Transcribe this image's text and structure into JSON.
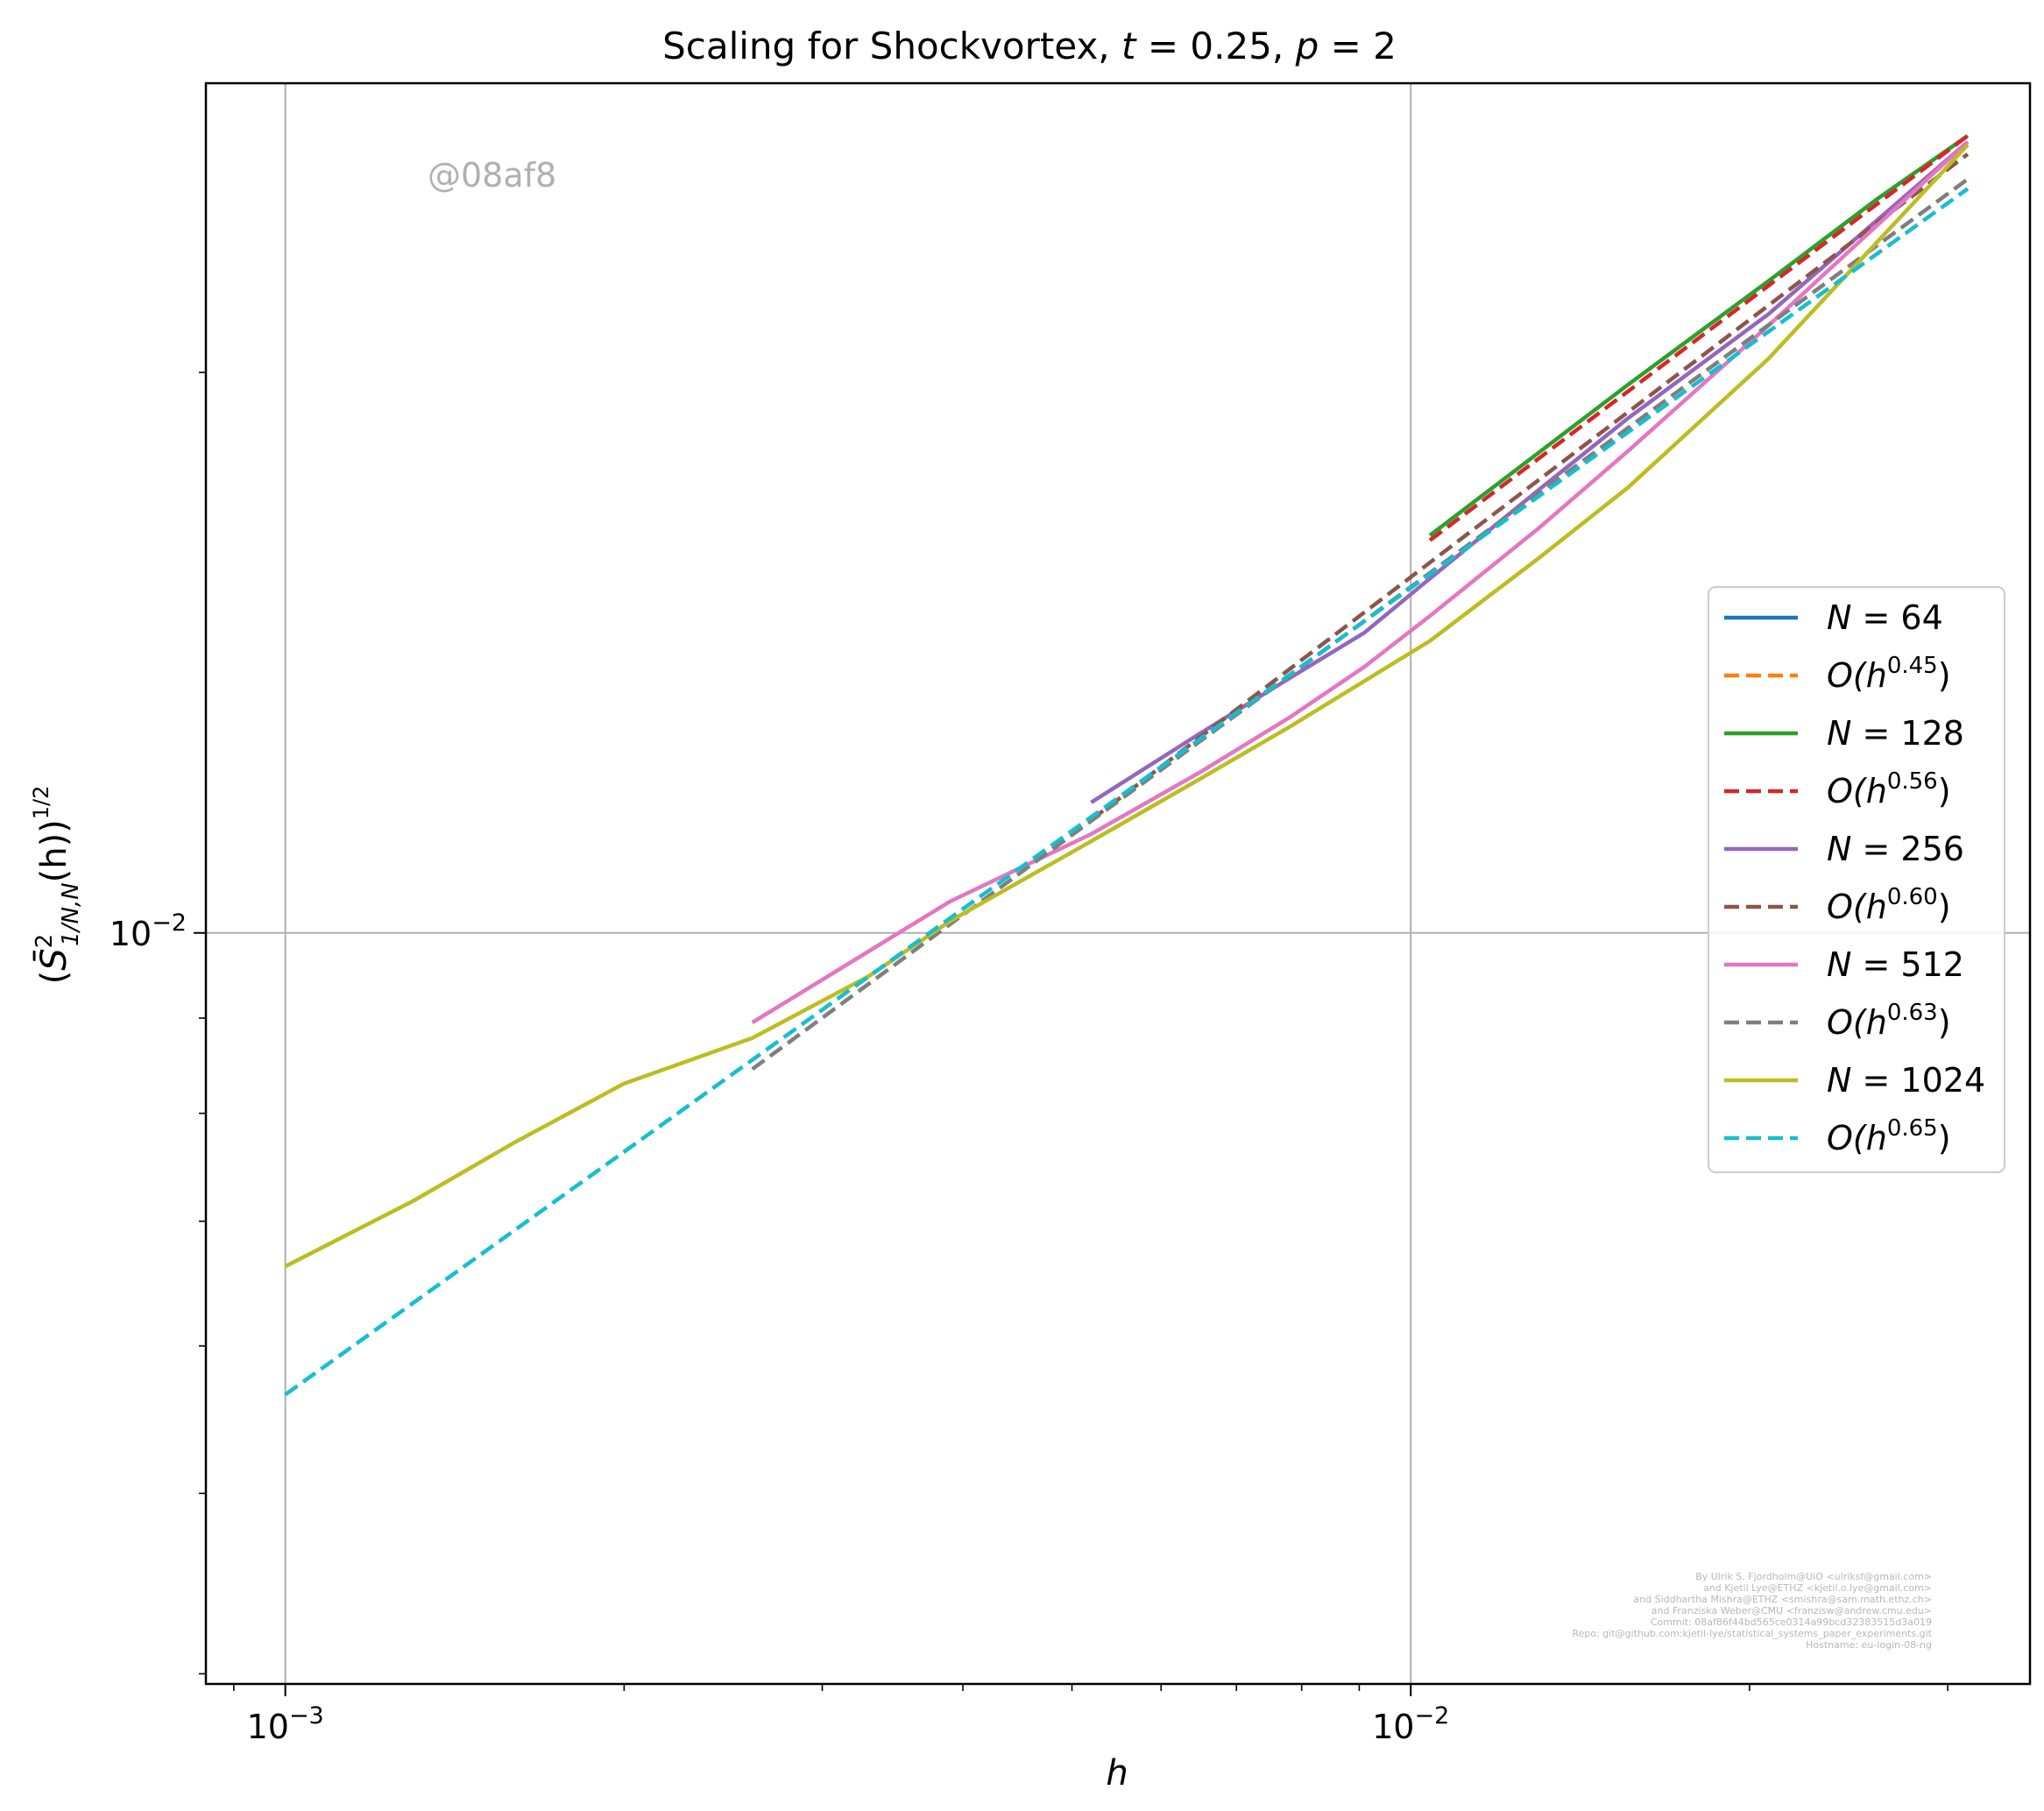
{
  "chart_data": {
    "type": "line",
    "title": "Scaling for Shockvortex, t = 0.25, p = 2",
    "title_parts": {
      "text": "Scaling for Shockvortex, ",
      "t_var": "t",
      "t_eq": " = 0.25, ",
      "p_var": "p",
      "p_eq": " = 2"
    },
    "xlabel": "h",
    "ylabel": "(S̄²₁/N,N(h))^(1/2)",
    "ylabel_parts": {
      "lparen": "(",
      "S": "S̄",
      "sup": "2",
      "sub": "1/N,N",
      "mid": "(h))",
      "exp": "1/2"
    },
    "x_scale": "log",
    "y_scale": "log",
    "xlim": [
      0.00085,
      0.0355
    ],
    "ylim": [
      0.00395,
      0.0286
    ],
    "x_ticks": [
      {
        "value": 0.001,
        "base": "10",
        "exp": "−3"
      },
      {
        "value": 0.01,
        "base": "10",
        "exp": "−2"
      }
    ],
    "y_ticks": [
      {
        "value": 0.01,
        "base": "10",
        "exp": "−2"
      }
    ],
    "x_minor_ticks": [
      0.0009,
      0.002,
      0.003,
      0.004,
      0.005,
      0.006,
      0.007,
      0.008,
      0.009,
      0.02,
      0.03
    ],
    "y_minor_ticks": [
      0.004,
      0.005,
      0.006,
      0.007,
      0.008,
      0.009,
      0.02
    ],
    "grid": true,
    "legend_position": "center-right",
    "watermark": "@08af8",
    "credits": [
      "By Ulrik S. Fjordholm@UiO <ulriksf@gmail.com>",
      "and Kjetil Lye@ETHZ <kjetil.o.lye@gmail.com>",
      "and Siddhartha Mishra@ETHZ <smishra@sam.math.ethz.ch>",
      "and Franziska Weber@CMU <franzisw@andrew.cmu.edu>",
      "Commit: 08af86f44bd565ce0314a99bcd32383515d3a019",
      "Repo: git@github.com:kjetil-lye/statistical_systems_paper_experiments.git",
      "Hostname: eu-login-08-ng"
    ],
    "series": [
      {
        "name": "N = 64",
        "legend": {
          "pre": "",
          "var": "N",
          "post": " = 64"
        },
        "color": "#1f77b4",
        "dashed": false,
        "x": [
          0.03125
        ],
        "y": [
          0.0268
        ]
      },
      {
        "name": "O(h^0.45)",
        "legend": {
          "pre": "O(h",
          "exp": "0.45",
          "post": ")"
        },
        "color": "#ff7f0e",
        "dashed": true,
        "x": [
          0.03125
        ],
        "y": [
          0.0268
        ]
      },
      {
        "name": "N = 128",
        "legend": {
          "pre": "",
          "var": "N",
          "post": " = 128"
        },
        "color": "#2ca02c",
        "dashed": false,
        "x": [
          0.0104,
          0.0156,
          0.0208,
          0.026,
          0.03125
        ],
        "y": [
          0.01635,
          0.0197,
          0.0224,
          0.0248,
          0.0268
        ]
      },
      {
        "name": "O(h^0.56)",
        "legend": {
          "pre": "O(h",
          "exp": "0.56",
          "post": ")"
        },
        "color": "#d62728",
        "dashed": true,
        "x": [
          0.0104,
          0.03125
        ],
        "y": [
          0.01625,
          0.0268
        ]
      },
      {
        "name": "N = 256",
        "legend": {
          "pre": "",
          "var": "N",
          "post": " = 256"
        },
        "color": "#9467bd",
        "dashed": false,
        "x": [
          0.0052,
          0.0065,
          0.0078,
          0.0091,
          0.0104,
          0.013,
          0.0156,
          0.0208,
          0.03125
        ],
        "y": [
          0.01175,
          0.0128,
          0.0137,
          0.0145,
          0.0155,
          0.0173,
          0.0189,
          0.0215,
          0.0266
        ]
      },
      {
        "name": "O(h^0.60)",
        "legend": {
          "pre": "O(h",
          "exp": "0.60",
          "post": ")"
        },
        "color": "#8c564b",
        "dashed": true,
        "x": [
          0.0052,
          0.03125
        ],
        "y": [
          0.0115,
          0.0262
        ]
      },
      {
        "name": "N = 512",
        "legend": {
          "pre": "",
          "var": "N",
          "post": " = 512"
        },
        "color": "#e377c2",
        "dashed": false,
        "x": [
          0.0026,
          0.0039,
          0.0052,
          0.0065,
          0.0078,
          0.0091,
          0.0104,
          0.013,
          0.0156,
          0.0208,
          0.03125
        ],
        "y": [
          0.00895,
          0.0104,
          0.0113,
          0.0122,
          0.01305,
          0.0139,
          0.0148,
          0.0165,
          0.01815,
          0.0212,
          0.0266
        ]
      },
      {
        "name": "O(h^0.63)",
        "legend": {
          "pre": "O(h",
          "exp": "0.63",
          "post": ")"
        },
        "color": "#7f7f7f",
        "dashed": true,
        "x": [
          0.0026,
          0.03125
        ],
        "y": [
          0.00845,
          0.0254
        ]
      },
      {
        "name": "N = 1024",
        "legend": {
          "pre": "",
          "var": "N",
          "post": " = 1024"
        },
        "color": "#bcbd22",
        "dashed": false,
        "x": [
          0.001,
          0.0013,
          0.0016,
          0.002,
          0.0026,
          0.0033,
          0.0039,
          0.0052,
          0.0065,
          0.0078,
          0.0104,
          0.013,
          0.0156,
          0.0208,
          0.03125
        ],
        "y": [
          0.00662,
          0.00718,
          0.00772,
          0.0083,
          0.00878,
          0.00948,
          0.01015,
          0.0112,
          0.0121,
          0.0129,
          0.01435,
          0.0159,
          0.01735,
          0.02035,
          0.0265
        ]
      },
      {
        "name": "O(h^0.65)",
        "legend": {
          "pre": "O(h",
          "exp": "0.65",
          "post": ")"
        },
        "color": "#17becf",
        "dashed": true,
        "x": [
          0.001,
          0.03125
        ],
        "y": [
          0.00565,
          0.0251
        ]
      }
    ]
  }
}
